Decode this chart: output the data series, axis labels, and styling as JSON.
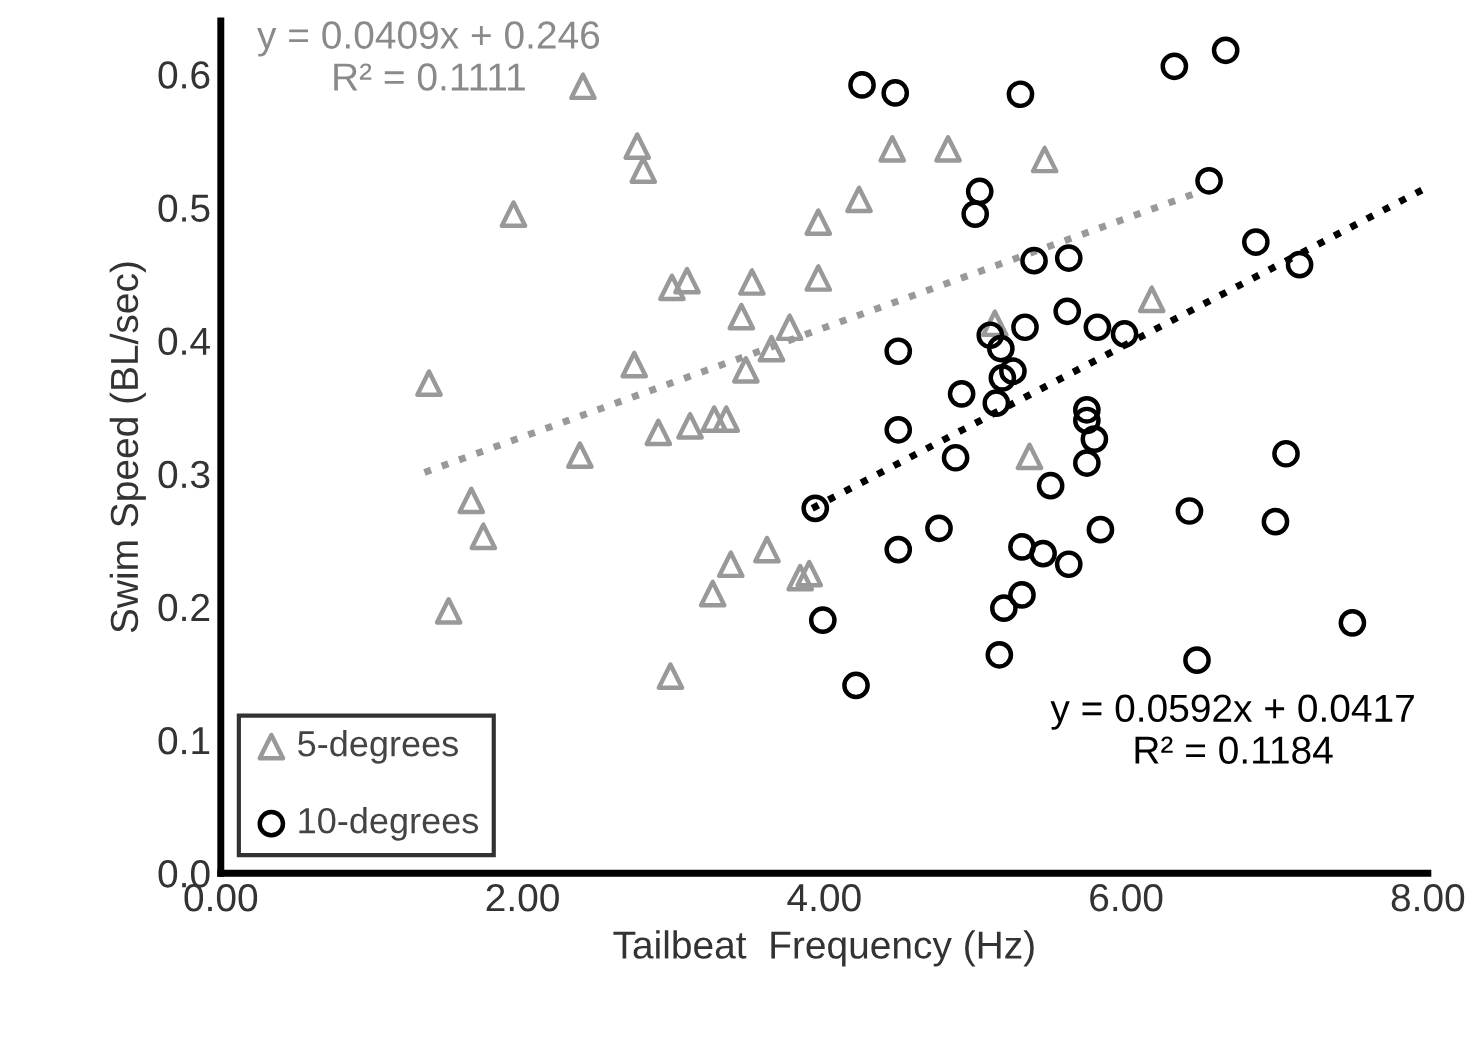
{
  "chart_data": {
    "type": "scatter",
    "xlabel": "Tailbeat  Frequency (Hz)",
    "ylabel": "Swim Speed (BL/sec)",
    "xlim": [
      0,
      8
    ],
    "ylim": [
      0,
      0.64
    ],
    "xticks": [
      {
        "value": 0,
        "label": "0.00"
      },
      {
        "value": 2,
        "label": "2.00"
      },
      {
        "value": 4,
        "label": "4.00"
      },
      {
        "value": 6,
        "label": "6.00"
      },
      {
        "value": 8,
        "label": "8.00"
      }
    ],
    "yticks": [
      {
        "value": 0,
        "label": "0.0"
      },
      {
        "value": 0.1,
        "label": "0.1"
      },
      {
        "value": 0.2,
        "label": "0.2"
      },
      {
        "value": 0.3,
        "label": "0.3"
      },
      {
        "value": 0.4,
        "label": "0.4"
      },
      {
        "value": 0.5,
        "label": "0.5"
      },
      {
        "value": 0.6,
        "label": "0.6"
      }
    ],
    "grid": false,
    "legend": "bottom left",
    "series": [
      {
        "name": "5-degrees",
        "color": "#999999",
        "marker": "triangle",
        "x": [
          2.4,
          2.76,
          2.8,
          1.94,
          4.23,
          3.96,
          2.99,
          3.09,
          3.52,
          3.96,
          3.45,
          3.77,
          3.65,
          3.48,
          2.74,
          1.38,
          2.9,
          3.11,
          3.27,
          3.35,
          2.38,
          1.66,
          1.74,
          1.51,
          3.38,
          3.62,
          3.26,
          3.9,
          3.84,
          2.98,
          4.45,
          4.82,
          5.46,
          6.17,
          5.13,
          5.36
        ],
        "values": [
          0.591,
          0.546,
          0.528,
          0.495,
          0.506,
          0.489,
          0.44,
          0.445,
          0.444,
          0.447,
          0.418,
          0.41,
          0.394,
          0.378,
          0.382,
          0.368,
          0.331,
          0.336,
          0.341,
          0.341,
          0.314,
          0.28,
          0.253,
          0.197,
          0.232,
          0.243,
          0.21,
          0.225,
          0.222,
          0.148,
          0.544,
          0.544,
          0.536,
          0.431,
          0.413,
          0.313
        ]
      },
      {
        "name": "10-degrees",
        "color": "#000000",
        "marker": "circle",
        "x": [
          4.25,
          4.47,
          5.3,
          6.32,
          6.66,
          6.55,
          5.03,
          5.0,
          5.39,
          5.62,
          6.86,
          7.15,
          4.49,
          5.61,
          5.33,
          5.81,
          5.99,
          5.1,
          5.17,
          5.25,
          5.18,
          4.91,
          5.14,
          4.49,
          4.87,
          5.74,
          5.74,
          5.79,
          5.74,
          7.06,
          5.5,
          3.94,
          4.49,
          4.76,
          5.31,
          5.45,
          5.62,
          5.83,
          6.42,
          6.99,
          5.31,
          5.19,
          3.99,
          5.16,
          6.47,
          7.5,
          4.21
        ],
        "values": [
          0.592,
          0.586,
          0.585,
          0.606,
          0.618,
          0.52,
          0.512,
          0.495,
          0.46,
          0.462,
          0.474,
          0.457,
          0.392,
          0.422,
          0.41,
          0.41,
          0.405,
          0.404,
          0.394,
          0.377,
          0.372,
          0.36,
          0.353,
          0.333,
          0.312,
          0.348,
          0.34,
          0.326,
          0.308,
          0.315,
          0.291,
          0.274,
          0.243,
          0.259,
          0.245,
          0.24,
          0.232,
          0.258,
          0.272,
          0.264,
          0.209,
          0.199,
          0.19,
          0.164,
          0.16,
          0.188,
          0.141
        ]
      },
      {
        "type": "line",
        "color": "#999999",
        "line_style": "dotted",
        "x": [
          1.35,
          6.47
        ],
        "values": [
          0.301,
          0.511
        ]
      },
      {
        "type": "line",
        "color": "#000000",
        "line_style": "dotted",
        "x": [
          3.92,
          7.96
        ],
        "values": [
          0.274,
          0.513
        ]
      }
    ],
    "annotations": [
      "y = 0.0409x + 0.246\nR² = 0.1111",
      "y = 0.0592x + 0.0417\nR² = 0.1184"
    ]
  }
}
